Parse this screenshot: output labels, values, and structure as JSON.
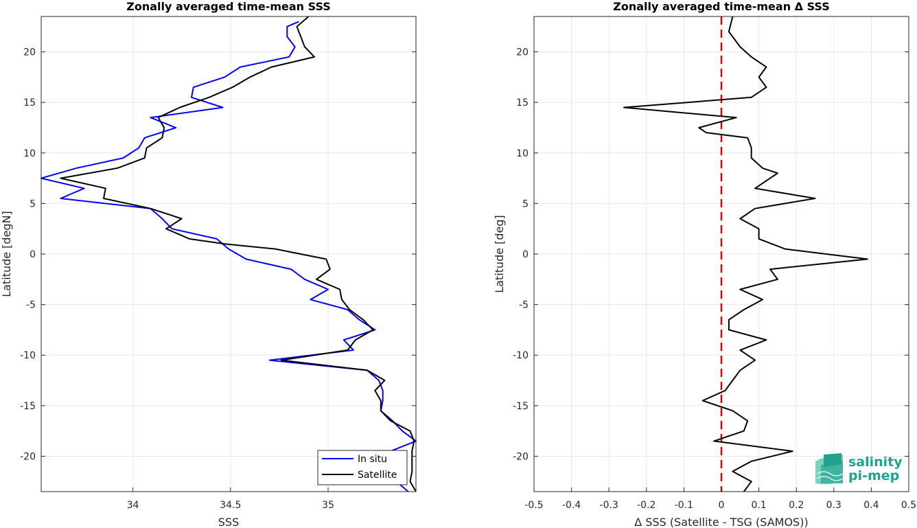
{
  "chart_data": [
    {
      "type": "line",
      "title": "Zonally averaged time-mean SSS",
      "xlabel": "SSS",
      "ylabel": "Latitude [degN]",
      "xlim": [
        33.53,
        35.45
      ],
      "ylim": [
        -23.5,
        23.5
      ],
      "xticks": [
        34,
        34.5,
        35
      ],
      "xtick_labels": [
        "34",
        "34.5",
        "35"
      ],
      "yticks": [
        20,
        15,
        10,
        5,
        0,
        -5,
        -10,
        -15,
        -20
      ],
      "ytick_labels": [
        "20",
        "15",
        "10",
        "5",
        "0",
        "-5",
        "-10",
        "-15",
        "-20"
      ],
      "grid": true,
      "legend": "bottom-right",
      "series": [
        {
          "name": "In situ",
          "color": "#0000ff",
          "points": [
            [
              34.85,
              23
            ],
            [
              34.79,
              22.5
            ],
            [
              34.79,
              21.5
            ],
            [
              34.83,
              20.5
            ],
            [
              34.8,
              19.5
            ],
            [
              34.55,
              18.5
            ],
            [
              34.47,
              17.5
            ],
            [
              34.31,
              16.5
            ],
            [
              34.3,
              15.5
            ],
            [
              34.46,
              14.5
            ],
            [
              34.09,
              13.5
            ],
            [
              34.22,
              12.5
            ],
            [
              34.06,
              11.5
            ],
            [
              34.03,
              10.5
            ],
            [
              33.95,
              9.5
            ],
            [
              33.71,
              8.5
            ],
            [
              33.53,
              7.5
            ],
            [
              33.75,
              6.5
            ],
            [
              33.63,
              5.5
            ],
            [
              34.09,
              4.5
            ],
            [
              34.15,
              3.5
            ],
            [
              34.2,
              2.5
            ],
            [
              34.43,
              1.5
            ],
            [
              34.49,
              0.5
            ],
            [
              34.58,
              -0.5
            ],
            [
              34.81,
              -1.5
            ],
            [
              34.88,
              -2.5
            ],
            [
              35.0,
              -3.5
            ],
            [
              34.91,
              -4.5
            ],
            [
              35.1,
              -5.5
            ],
            [
              35.16,
              -6.5
            ],
            [
              35.24,
              -7.5
            ],
            [
              35.08,
              -8.5
            ],
            [
              35.13,
              -9.5
            ],
            [
              34.7,
              -10.5
            ],
            [
              35.2,
              -11.5
            ],
            [
              35.26,
              -12.5
            ],
            [
              35.28,
              -13.5
            ],
            [
              35.28,
              -14.5
            ],
            [
              35.27,
              -15.5
            ],
            [
              35.33,
              -16.5
            ],
            [
              35.38,
              -17.5
            ],
            [
              35.45,
              -18.5
            ],
            [
              35.32,
              -19.5
            ],
            [
              35.33,
              -20.5
            ],
            [
              35.33,
              -21.5
            ],
            [
              35.35,
              -22.5
            ],
            [
              35.41,
              -23.5
            ]
          ]
        },
        {
          "name": "Satellite",
          "color": "#000000",
          "points": [
            [
              34.9,
              23.5
            ],
            [
              34.84,
              22.5
            ],
            [
              34.86,
              21.5
            ],
            [
              34.88,
              20.5
            ],
            [
              34.93,
              19.5
            ],
            [
              34.71,
              18.5
            ],
            [
              34.6,
              17.5
            ],
            [
              34.51,
              16.5
            ],
            [
              34.39,
              15.5
            ],
            [
              34.24,
              14.5
            ],
            [
              34.13,
              13.5
            ],
            [
              34.16,
              12.5
            ],
            [
              34.15,
              11.5
            ],
            [
              34.07,
              10.5
            ],
            [
              34.06,
              9.5
            ],
            [
              33.92,
              8.5
            ],
            [
              33.63,
              7.5
            ],
            [
              33.86,
              6.5
            ],
            [
              33.85,
              5.5
            ],
            [
              34.09,
              4.5
            ],
            [
              34.25,
              3.5
            ],
            [
              34.17,
              2.5
            ],
            [
              34.29,
              1.5
            ],
            [
              34.47,
              1.0
            ],
            [
              34.73,
              0.5
            ],
            [
              34.99,
              -0.5
            ],
            [
              35.01,
              -1.5
            ],
            [
              34.94,
              -2.5
            ],
            [
              35.06,
              -3.5
            ],
            [
              35.07,
              -4.5
            ],
            [
              35.11,
              -5.5
            ],
            [
              35.18,
              -6.5
            ],
            [
              35.23,
              -7.5
            ],
            [
              35.14,
              -8.5
            ],
            [
              35.1,
              -9.5
            ],
            [
              34.76,
              -10.5
            ],
            [
              35.2,
              -11.5
            ],
            [
              35.29,
              -12.5
            ],
            [
              35.24,
              -13.5
            ],
            [
              35.27,
              -14.5
            ],
            [
              35.27,
              -15.5
            ],
            [
              35.32,
              -16.5
            ],
            [
              35.42,
              -17.5
            ],
            [
              35.44,
              -18.5
            ],
            [
              35.43,
              -19.5
            ],
            [
              35.43,
              -20.5
            ],
            [
              35.43,
              -21.5
            ],
            [
              35.42,
              -22.5
            ],
            [
              35.45,
              -23.5
            ]
          ]
        }
      ]
    },
    {
      "type": "line",
      "title": "Zonally averaged time-mean Δ SSS",
      "xlabel": "Δ SSS (Satellite - TSG (SAMOS))",
      "ylabel": "Latitude [deg]",
      "xlim": [
        -0.5,
        0.5
      ],
      "ylim": [
        -23.5,
        23.5
      ],
      "xticks": [
        -0.5,
        -0.4,
        -0.3,
        -0.2,
        -0.1,
        0,
        0.1,
        0.2,
        0.3,
        0.4,
        0.5
      ],
      "xtick_labels": [
        "-0.5",
        "-0.4",
        "-0.3",
        "-0.2",
        "-0.1",
        "0",
        "0.1",
        "0.2",
        "0.3",
        "0.4",
        "0.5"
      ],
      "yticks": [
        20,
        15,
        10,
        5,
        0,
        -5,
        -10,
        -15,
        -20
      ],
      "ytick_labels": [
        "20",
        "15",
        "10",
        "5",
        "0",
        "-5",
        "-10",
        "-15",
        "-20"
      ],
      "grid": true,
      "reference_line": {
        "x": 0,
        "color": "#e00000",
        "style": "dashed"
      },
      "series": [
        {
          "color": "#000000",
          "points": [
            [
              0.03,
              23.5
            ],
            [
              0.02,
              22
            ],
            [
              0.05,
              20.5
            ],
            [
              0.08,
              19.5
            ],
            [
              0.12,
              18.5
            ],
            [
              0.1,
              17.5
            ],
            [
              0.12,
              16.5
            ],
            [
              0.08,
              15.5
            ],
            [
              -0.26,
              14.5
            ],
            [
              0.04,
              13.5
            ],
            [
              -0.06,
              12.5
            ],
            [
              -0.04,
              12.0
            ],
            [
              0.07,
              11.5
            ],
            [
              0.08,
              10.5
            ],
            [
              0.08,
              9.5
            ],
            [
              0.11,
              8.5
            ],
            [
              0.15,
              8.0
            ],
            [
              0.13,
              7.5
            ],
            [
              0.09,
              6.5
            ],
            [
              0.25,
              5.5
            ],
            [
              0.09,
              4.5
            ],
            [
              0.05,
              3.5
            ],
            [
              0.1,
              2.5
            ],
            [
              0.1,
              1.5
            ],
            [
              0.17,
              0.5
            ],
            [
              0.39,
              -0.5
            ],
            [
              0.13,
              -1.5
            ],
            [
              0.15,
              -2.5
            ],
            [
              0.05,
              -3.5
            ],
            [
              0.11,
              -4.5
            ],
            [
              0.06,
              -5.5
            ],
            [
              0.02,
              -6.5
            ],
            [
              0.02,
              -7.5
            ],
            [
              0.12,
              -8.5
            ],
            [
              0.05,
              -9.5
            ],
            [
              0.09,
              -10.5
            ],
            [
              0.05,
              -11.5
            ],
            [
              0.03,
              -12.5
            ],
            [
              0.01,
              -13.5
            ],
            [
              -0.05,
              -14.5
            ],
            [
              0.03,
              -15.5
            ],
            [
              0.07,
              -16.5
            ],
            [
              0.06,
              -17.5
            ],
            [
              -0.02,
              -18.5
            ],
            [
              0.19,
              -19.5
            ],
            [
              0.08,
              -20.5
            ],
            [
              0.03,
              -21.5
            ],
            [
              0.08,
              -22.5
            ],
            [
              0.06,
              -23.5
            ]
          ]
        }
      ]
    }
  ],
  "legend": {
    "in_situ_label": "In situ",
    "satellite_label": "Satellite"
  },
  "logo": {
    "line1": "salinity",
    "line2": "pi-mep",
    "icon": "salinity-pi-mep-logo-icon",
    "color": "#1fa38f"
  }
}
